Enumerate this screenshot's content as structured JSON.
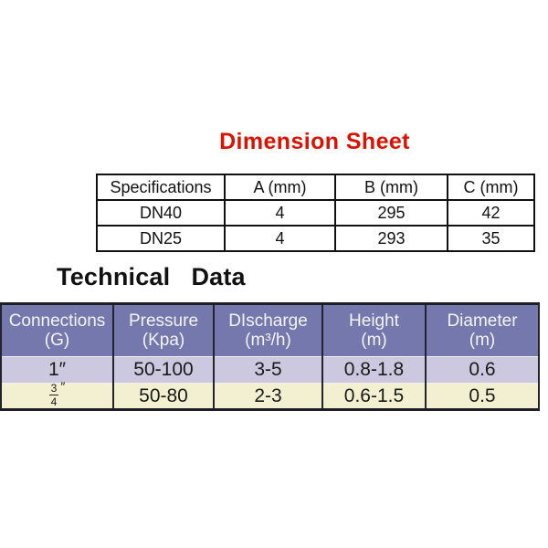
{
  "page": {
    "background": "#ffffff"
  },
  "dimension_sheet": {
    "title": "Dimension Sheet",
    "title_color": "#dd1100",
    "columns": [
      "Specifications",
      "A (mm)",
      "B (mm)",
      "C (mm)"
    ],
    "rows": [
      [
        "DN40",
        "4",
        "295",
        "42"
      ],
      [
        "DN25",
        "4",
        "293",
        "35"
      ]
    ]
  },
  "technical_data": {
    "title": "Technical   Data",
    "title_color": "#111111",
    "header": {
      "bg": "#7478ad",
      "text_color": "#f4f4fa",
      "columns": [
        {
          "line1": "Connections",
          "line2": "(G)"
        },
        {
          "line1": "Pressure",
          "line2": "(Kpa)"
        },
        {
          "line1": "DIscharge",
          "line2": "(m³/h)"
        },
        {
          "line1": "Height",
          "line2": "(m)"
        },
        {
          "line1": "Diameter",
          "line2": "(m)"
        }
      ]
    },
    "rows": [
      {
        "bg": "#ccc8df",
        "cells": [
          "1″",
          "50-100",
          "3-5",
          "0.8-1.8",
          "0.6"
        ]
      },
      {
        "bg": "#f2f0d0",
        "cells": [
          {
            "num": "3",
            "den": "4",
            "suffix": "″"
          },
          "50-80",
          "2-3",
          "0.6-1.5",
          "0.5"
        ]
      }
    ]
  }
}
